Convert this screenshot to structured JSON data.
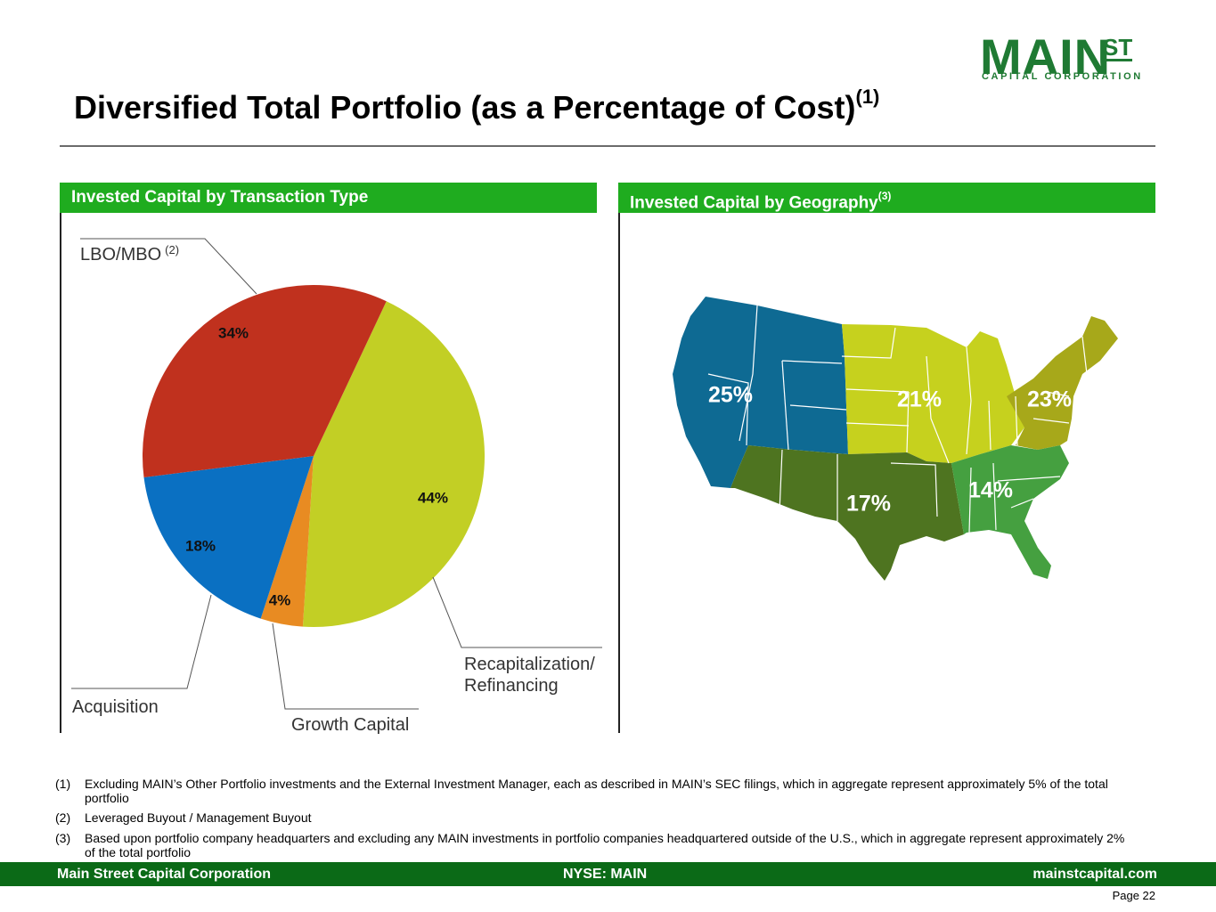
{
  "logo": {
    "main": "MAIN",
    "st": "ST",
    "sub": "CAPITAL CORPORATION"
  },
  "title": {
    "text": "Diversified Total Portfolio (as a Percentage of Cost)",
    "sup": "(1)"
  },
  "panels": {
    "left": {
      "title": "Invested Capital by Transaction Type"
    },
    "right": {
      "title": "Invested Capital by Geography",
      "sup": "(3)"
    }
  },
  "chart_data": [
    {
      "type": "pie",
      "title": "Invested Capital by Transaction Type",
      "unit": "%",
      "slices": [
        {
          "label": "Recapitalization/ Refinancing",
          "label_lines": [
            "Recapitalization/",
            "Refinancing"
          ],
          "value": 44,
          "value_label": "44%",
          "color": "#c2cf25"
        },
        {
          "label": "Growth Capital",
          "label_lines": [
            "Growth Capital"
          ],
          "value": 4,
          "value_label": "4%",
          "color": "#e88b22"
        },
        {
          "label": "Acquisition",
          "label_lines": [
            "Acquisition"
          ],
          "value": 18,
          "value_label": "18%",
          "color": "#0a70c2"
        },
        {
          "label": "LBO/MBO",
          "label_lines": [
            "LBO/MBO"
          ],
          "label_sup": "(2)",
          "value": 34,
          "value_label": "34%",
          "color": "#c0311e"
        }
      ]
    },
    {
      "type": "map",
      "title": "Invested Capital by Geography",
      "unit": "%",
      "regions": [
        {
          "value": 25,
          "value_label": "25%",
          "color": "#0e6a93"
        },
        {
          "value": 21,
          "value_label": "21%",
          "color": "#c6d11e"
        },
        {
          "value": 23,
          "value_label": "23%",
          "color": "#a7a81a"
        },
        {
          "value": 17,
          "value_label": "17%",
          "color": "#4e7420"
        },
        {
          "value": 14,
          "value_label": "14%",
          "color": "#45a040"
        }
      ]
    }
  ],
  "footnotes": [
    {
      "num": "(1)",
      "text": "Excluding MAIN’s Other Portfolio investments and the External Investment Manager, each as described in MAIN’s SEC filings, which in aggregate represent approximately 5% of the total portfolio"
    },
    {
      "num": "(2)",
      "text": "Leveraged Buyout / Management Buyout"
    },
    {
      "num": "(3)",
      "text": "Based upon portfolio company headquarters and excluding any MAIN investments in portfolio companies headquartered outside of the U.S., which in aggregate represent approximately 2% of the total portfolio"
    }
  ],
  "footer": {
    "left": "Main Street Capital Corporation",
    "center": "NYSE: MAIN",
    "right": "mainstcapital.com"
  },
  "page": {
    "label": "Page  22"
  }
}
